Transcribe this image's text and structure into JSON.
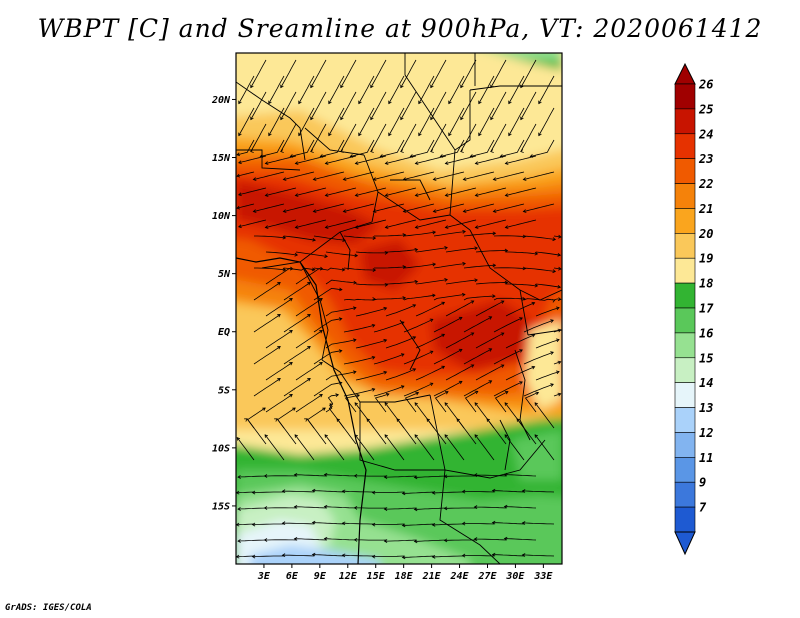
{
  "title": "WBPT [C] and Sreamline at 900hPa, VT: 2020061412",
  "footer": "GrADS: IGES/COLA",
  "chart_data": {
    "type": "heatmap",
    "variable": "WBPT",
    "units": "C",
    "level": "900hPa",
    "valid_time": "2020061412",
    "lon_range": [
      0,
      35
    ],
    "lat_range": [
      -20,
      24
    ],
    "x_ticks": [
      {
        "value": 3,
        "label": "3E"
      },
      {
        "value": 6,
        "label": "6E"
      },
      {
        "value": 9,
        "label": "9E"
      },
      {
        "value": 12,
        "label": "12E"
      },
      {
        "value": 15,
        "label": "15E"
      },
      {
        "value": 18,
        "label": "18E"
      },
      {
        "value": 21,
        "label": "21E"
      },
      {
        "value": 24,
        "label": "24E"
      },
      {
        "value": 27,
        "label": "27E"
      },
      {
        "value": 30,
        "label": "30E"
      },
      {
        "value": 33,
        "label": "33E"
      }
    ],
    "y_ticks": [
      {
        "value": 20,
        "label": "20N"
      },
      {
        "value": 15,
        "label": "15N"
      },
      {
        "value": 10,
        "label": "10N"
      },
      {
        "value": 5,
        "label": "5N"
      },
      {
        "value": 0,
        "label": "EQ"
      },
      {
        "value": -5,
        "label": "5S"
      },
      {
        "value": -10,
        "label": "10S"
      },
      {
        "value": -15,
        "label": "15S"
      }
    ],
    "colorbar": [
      {
        "value": "26",
        "color": "#a00000"
      },
      {
        "value": "25",
        "color": "#c81400"
      },
      {
        "value": "24",
        "color": "#e63200"
      },
      {
        "value": "23",
        "color": "#f05a00"
      },
      {
        "value": "22",
        "color": "#f5820a"
      },
      {
        "value": "21",
        "color": "#faa51e"
      },
      {
        "value": "20",
        "color": "#fac85a"
      },
      {
        "value": "19",
        "color": "#fde896"
      },
      {
        "value": "18",
        "color": "#32b432"
      },
      {
        "value": "17",
        "color": "#5ac85a"
      },
      {
        "value": "16",
        "color": "#96e191"
      },
      {
        "value": "15",
        "color": "#c8f0c3"
      },
      {
        "value": "14",
        "color": "#e6f5fa"
      },
      {
        "value": "13",
        "color": "#aad2fa"
      },
      {
        "value": "12",
        "color": "#82b4f0"
      },
      {
        "value": "11",
        "color": "#5a96e6"
      },
      {
        "value": "9",
        "color": "#3c78dc"
      },
      {
        "value": "7",
        "color": "#1e5ad2"
      }
    ],
    "colorbar_extremes": {
      "above": "#a00000",
      "below": "#1e5ad2"
    }
  }
}
